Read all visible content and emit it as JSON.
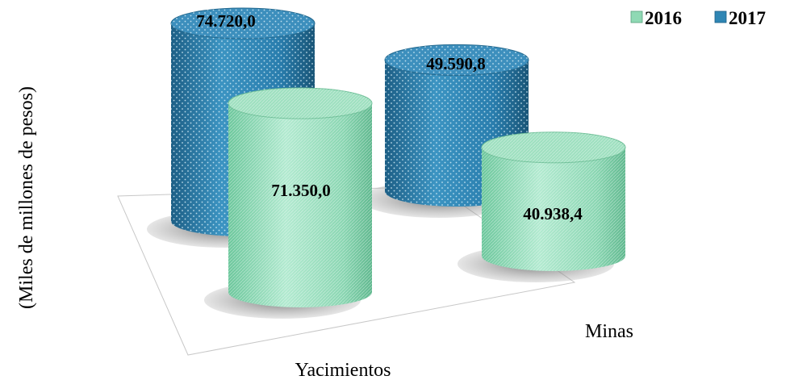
{
  "chart_data": {
    "type": "bar",
    "style": "3d-cylinder",
    "ylabel": "(Miles de millones de pesos)",
    "categories": [
      "Yacimientos",
      "Minas"
    ],
    "series": [
      {
        "name": "2016",
        "values": [
          71350.0,
          40938.4
        ],
        "value_labels": [
          "71.350,0",
          "40.938,4"
        ],
        "color": "#8fd9b4"
      },
      {
        "name": "2017",
        "values": [
          74720.0,
          49590.8
        ],
        "value_labels": [
          "74.720,0",
          "49.590,8"
        ],
        "color": "#2f86b4"
      }
    ],
    "legend_position": "top-right",
    "grid": false
  }
}
